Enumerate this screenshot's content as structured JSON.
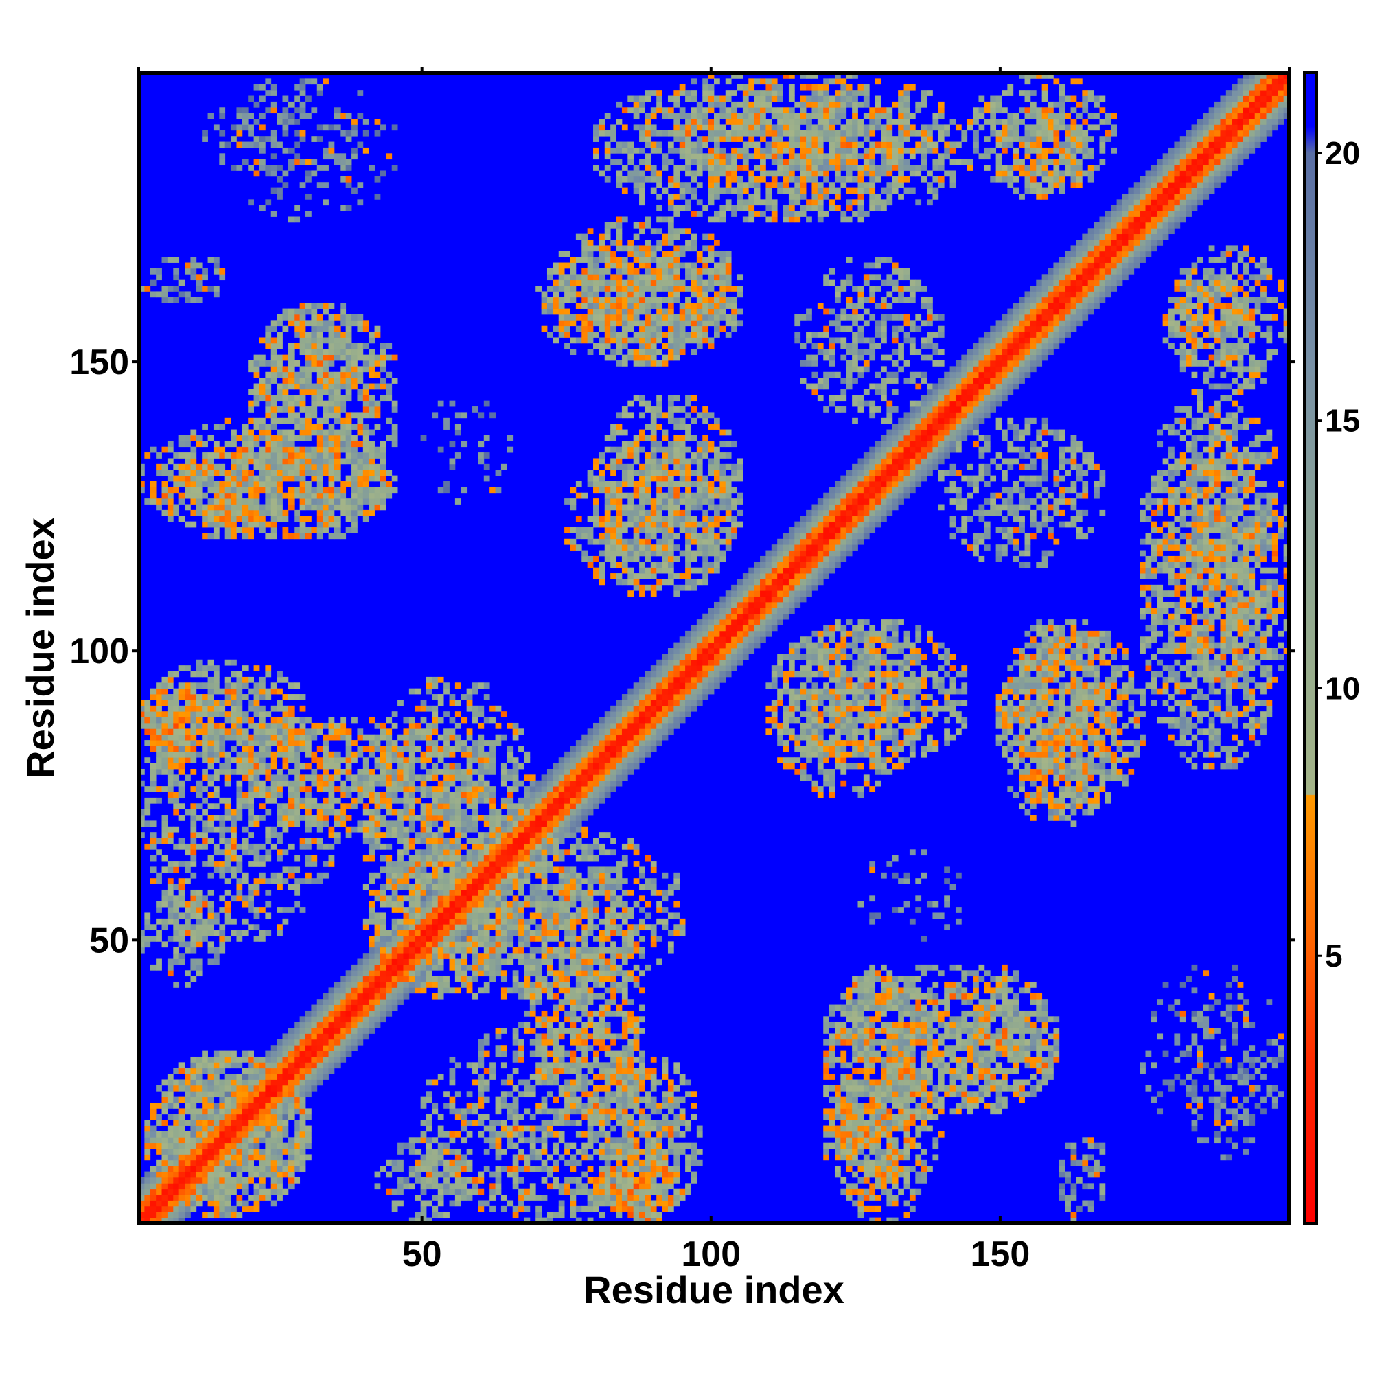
{
  "chart_data": {
    "type": "heatmap",
    "title": "",
    "xlabel": "Residue index",
    "ylabel": "Residue index",
    "n_residues": 200,
    "xlim": [
      1,
      200
    ],
    "ylim": [
      1,
      200
    ],
    "x_ticks": [
      50,
      100,
      150
    ],
    "x_tick_labels": [
      "50",
      "100",
      "150"
    ],
    "y_ticks": [
      50,
      100,
      150
    ],
    "y_tick_labels": [
      "50",
      "100",
      "150"
    ],
    "colorbar": {
      "range": [
        0,
        21.5
      ],
      "ticks": [
        5,
        10,
        15,
        20
      ],
      "tick_labels": [
        "5",
        "10",
        "15",
        "20"
      ],
      "stops": [
        {
          "value": 0,
          "color": "#ff0000"
        },
        {
          "value": 3,
          "color": "#ff2a00"
        },
        {
          "value": 5.5,
          "color": "#ff6a00"
        },
        {
          "value": 8,
          "color": "#ff9900"
        },
        {
          "value": 8.01,
          "color": "#a4b488"
        },
        {
          "value": 12,
          "color": "#8fa890"
        },
        {
          "value": 16,
          "color": "#7891a6"
        },
        {
          "value": 20,
          "color": "#5a6fa5"
        },
        {
          "value": 20.5,
          "color": "#0000ff"
        }
      ]
    },
    "background_value": 21,
    "diagonal_band_width": 7,
    "contact_regions": [
      {
        "x": [
          2,
          30
        ],
        "y": [
          2,
          30
        ],
        "value": 12,
        "density": 0.75
      },
      {
        "x": [
          1,
          15
        ],
        "y": [
          42,
          58
        ],
        "value": 13,
        "density": 0.6
      },
      {
        "x": [
          1,
          30
        ],
        "y": [
          80,
          98
        ],
        "value": 12,
        "density": 0.7
      },
      {
        "x": [
          20,
          60
        ],
        "y": [
          68,
          88
        ],
        "value": 11,
        "density": 0.7
      },
      {
        "x": [
          40,
          95
        ],
        "y": [
          40,
          70
        ],
        "value": 12,
        "density": 0.7
      },
      {
        "x": [
          50,
          95
        ],
        "y": [
          1,
          35
        ],
        "value": 12,
        "density": 0.65
      },
      {
        "x": [
          80,
          95
        ],
        "y": [
          1,
          12
        ],
        "value": 9,
        "density": 0.8
      },
      {
        "x": [
          1,
          45
        ],
        "y": [
          120,
          140
        ],
        "value": 11,
        "density": 0.75
      },
      {
        "x": [
          20,
          45
        ],
        "y": [
          138,
          160
        ],
        "value": 12,
        "density": 0.7
      },
      {
        "x": [
          1,
          10
        ],
        "y": [
          160,
          168
        ],
        "value": 15,
        "density": 0.5
      },
      {
        "x": [
          7,
          42
        ],
        "y": [
          185,
          195
        ],
        "value": 17,
        "density": 0.25
      },
      {
        "x": [
          75,
          105
        ],
        "y": [
          110,
          135
        ],
        "value": 12,
        "density": 0.7
      },
      {
        "x": [
          70,
          105
        ],
        "y": [
          150,
          170
        ],
        "value": 12,
        "density": 0.7
      },
      {
        "x": [
          80,
          135
        ],
        "y": [
          175,
          200
        ],
        "value": 12,
        "density": 0.7
      },
      {
        "x": [
          110,
          145
        ],
        "y": [
          80,
          105
        ],
        "value": 12,
        "density": 0.7
      },
      {
        "x": [
          115,
          140
        ],
        "y": [
          140,
          168
        ],
        "value": 13,
        "density": 0.55
      },
      {
        "x": [
          150,
          175
        ],
        "y": [
          72,
          105
        ],
        "value": 11,
        "density": 0.75
      },
      {
        "x": [
          175,
          200
        ],
        "y": [
          95,
          145
        ],
        "value": 12,
        "density": 0.7
      },
      {
        "x": [
          180,
          200
        ],
        "y": [
          145,
          170
        ],
        "value": 12,
        "density": 0.7
      },
      {
        "x": [
          150,
          165
        ],
        "y": [
          178,
          195
        ],
        "value": 11,
        "density": 0.7
      },
      {
        "x": [
          120,
          160
        ],
        "y": [
          20,
          45
        ],
        "value": 12,
        "density": 0.7
      },
      {
        "x": [
          120,
          135
        ],
        "y": [
          5,
          25
        ],
        "value": 11,
        "density": 0.75
      },
      {
        "x": [
          160,
          170
        ],
        "y": [
          5,
          15
        ],
        "value": 15,
        "density": 0.5
      },
      {
        "x": [
          175,
          200
        ],
        "y": [
          15,
          45
        ],
        "value": 17,
        "density": 0.25
      },
      {
        "x": [
          125,
          145
        ],
        "y": [
          50,
          65
        ],
        "value": 17,
        "density": 0.25
      }
    ]
  }
}
